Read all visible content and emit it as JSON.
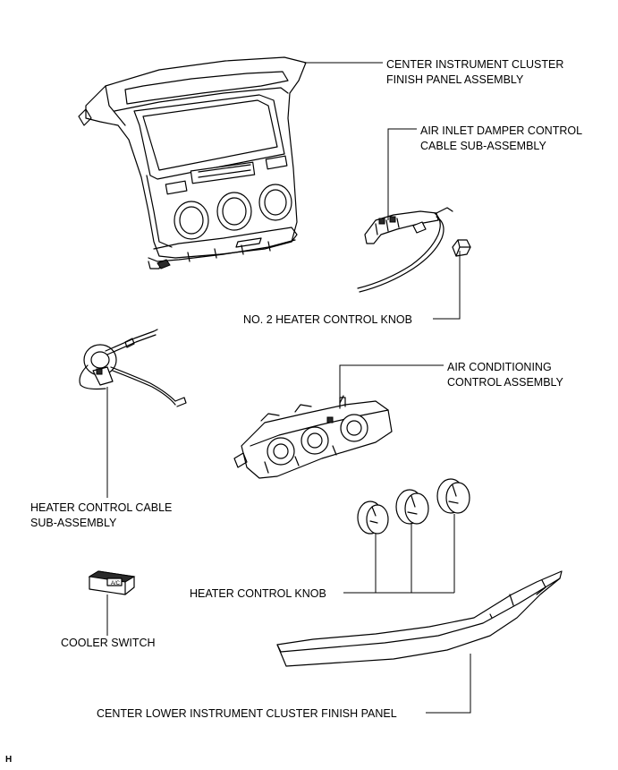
{
  "labels": {
    "cluster_finish_panel": [
      "CENTER INSTRUMENT CLUSTER",
      "FINISH PANEL ASSEMBLY"
    ],
    "air_inlet_cable": [
      "AIR INLET DAMPER CONTROL",
      "CABLE SUB-ASSEMBLY"
    ],
    "no2_knob": "NO. 2 HEATER CONTROL KNOB",
    "ac_control": [
      "AIR CONDITIONING",
      "CONTROL ASSEMBLY"
    ],
    "heater_cable": [
      "HEATER CONTROL CABLE",
      "SUB-ASSEMBLY"
    ],
    "heater_knob": "HEATER CONTROL KNOB",
    "cooler_switch": "COOLER SWITCH",
    "lower_panel": "CENTER LOWER INSTRUMENT CLUSTER FINISH PANEL",
    "corner_code": "H"
  },
  "switch_legend": "A/C"
}
